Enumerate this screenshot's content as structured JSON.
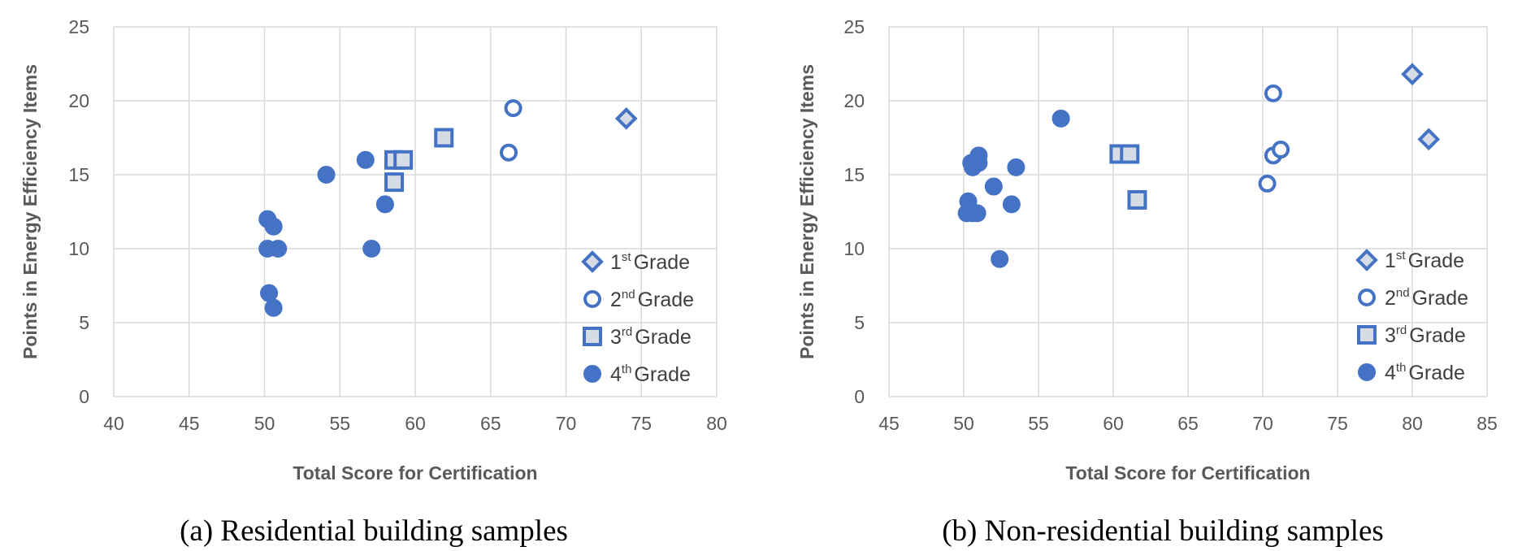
{
  "chart_data": [
    {
      "type": "scatter",
      "title": "",
      "caption": "(a) Residential building samples",
      "xlabel": "Total Score for Certification",
      "ylabel": "Points in Energy Efficiency Items",
      "xlim": [
        40,
        80
      ],
      "ylim": [
        0,
        25
      ],
      "xticks": [
        40,
        45,
        50,
        55,
        60,
        65,
        70,
        75,
        80
      ],
      "yticks": [
        0,
        5,
        10,
        15,
        20,
        25
      ],
      "grid": true,
      "legend_position": "bottom-right",
      "series": [
        {
          "name": "1st Grade",
          "ordinal": "1",
          "suffix": "st",
          "label": "Grade",
          "marker": "diamond",
          "points": [
            [
              74,
              18.8
            ]
          ]
        },
        {
          "name": "2nd Grade",
          "ordinal": "2",
          "suffix": "nd",
          "label": "Grade",
          "marker": "circle-open",
          "points": [
            [
              66.5,
              19.5
            ],
            [
              66.2,
              16.5
            ]
          ]
        },
        {
          "name": "3rd Grade",
          "ordinal": "3",
          "suffix": "rd",
          "label": "Grade",
          "marker": "square",
          "points": [
            [
              61.9,
              17.5
            ],
            [
              58.6,
              16
            ],
            [
              59.2,
              16
            ],
            [
              58.6,
              14.5
            ]
          ]
        },
        {
          "name": "4th Grade",
          "ordinal": "4",
          "suffix": "th",
          "label": "Grade",
          "marker": "circle-filled",
          "points": [
            [
              54.1,
              15
            ],
            [
              56.7,
              16
            ],
            [
              58,
              13
            ],
            [
              57.1,
              10
            ],
            [
              50.2,
              12
            ],
            [
              50.6,
              11.5
            ],
            [
              50.2,
              10
            ],
            [
              50.9,
              10
            ],
            [
              50.3,
              7
            ],
            [
              50.6,
              6
            ]
          ]
        }
      ]
    },
    {
      "type": "scatter",
      "title": "",
      "caption": "(b) Non-residential building samples",
      "xlabel": "Total Score for Certification",
      "ylabel": "Points in Energy Efficiency Items",
      "xlim": [
        45,
        85
      ],
      "ylim": [
        0,
        25
      ],
      "xticks": [
        45,
        50,
        55,
        60,
        65,
        70,
        75,
        80,
        85
      ],
      "yticks": [
        0,
        5,
        10,
        15,
        20,
        25
      ],
      "grid": true,
      "legend_position": "bottom-right",
      "series": [
        {
          "name": "1st Grade",
          "ordinal": "1",
          "suffix": "st",
          "label": "Grade",
          "marker": "diamond",
          "points": [
            [
              80,
              21.8
            ],
            [
              81.1,
              17.4
            ]
          ]
        },
        {
          "name": "2nd Grade",
          "ordinal": "2",
          "suffix": "nd",
          "label": "Grade",
          "marker": "circle-open",
          "points": [
            [
              70.7,
              20.5
            ],
            [
              70.7,
              16.3
            ],
            [
              71.2,
              16.7
            ],
            [
              70.3,
              14.4
            ]
          ]
        },
        {
          "name": "3rd Grade",
          "ordinal": "3",
          "suffix": "rd",
          "label": "Grade",
          "marker": "square",
          "points": [
            [
              60.4,
              16.4
            ],
            [
              61.1,
              16.4
            ],
            [
              61.6,
              13.3
            ]
          ]
        },
        {
          "name": "4th Grade",
          "ordinal": "4",
          "suffix": "th",
          "label": "Grade",
          "marker": "circle-filled",
          "points": [
            [
              56.5,
              18.8
            ],
            [
              50.5,
              15.8
            ],
            [
              51,
              16.3
            ],
            [
              51,
              15.8
            ],
            [
              50.6,
              15.5
            ],
            [
              53.5,
              15.5
            ],
            [
              52,
              14.2
            ],
            [
              50.3,
              13.2
            ],
            [
              53.2,
              13
            ],
            [
              50.2,
              12.4
            ],
            [
              50.6,
              12.4
            ],
            [
              50.9,
              12.4
            ],
            [
              52.4,
              9.3
            ]
          ]
        }
      ]
    }
  ],
  "colors": {
    "marker": "#4472C4",
    "marker_fill_light": "#D6DCE5",
    "grid": "#D9D9D9",
    "text": "#595959"
  }
}
